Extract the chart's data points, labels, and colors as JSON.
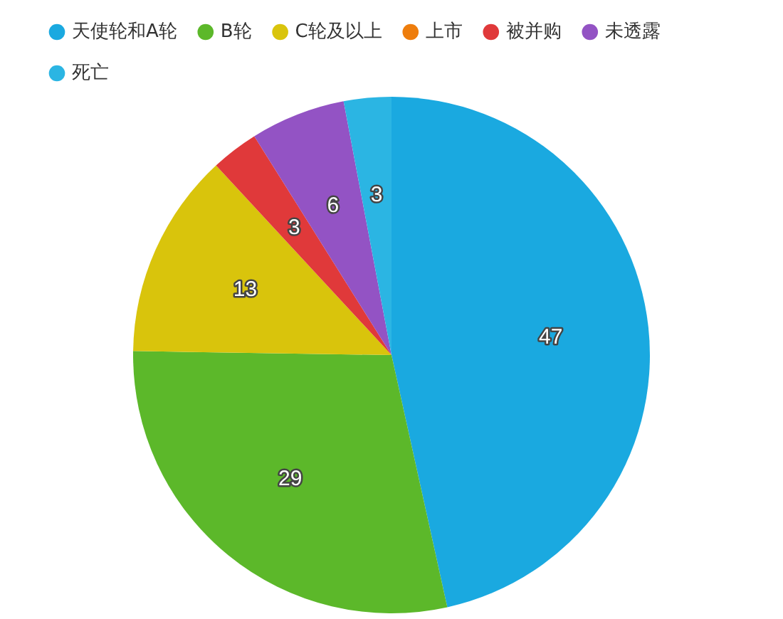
{
  "chart_data": {
    "type": "pie",
    "categories": [
      "天使轮和A轮",
      "B轮",
      "C轮及以上",
      "上市",
      "被并购",
      "未透露",
      "死亡"
    ],
    "values": [
      47,
      29,
      13,
      0,
      3,
      6,
      3
    ],
    "value_labels": [
      "47",
      "29",
      "13",
      null,
      "3",
      "6",
      "3"
    ],
    "colors": [
      "#1aa9e0",
      "#5cb82a",
      "#d9c40c",
      "#ee7d0c",
      "#e0393a",
      "#9353c4",
      "#2bb5e3"
    ],
    "legend": "top left"
  }
}
